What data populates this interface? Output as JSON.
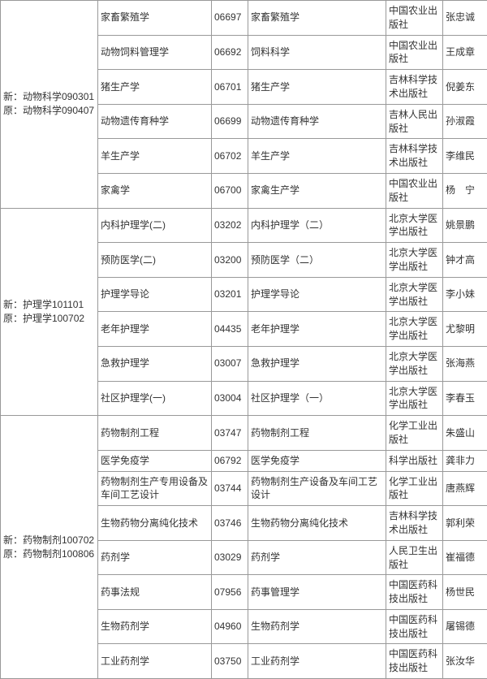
{
  "groups": [
    {
      "header_lines": [
        "新：动物科学090301",
        "原：动物科学090407"
      ],
      "rows": [
        {
          "course": "家畜繁殖学",
          "code": "06697",
          "book": "家畜繁殖学",
          "publisher": "中国农业出版社",
          "author": "张忠诚"
        },
        {
          "course": "动物饲料管理学",
          "code": "06692",
          "book": "饲料科学",
          "publisher": "中国农业出版社",
          "author": "王成章"
        },
        {
          "course": "猪生产学",
          "code": "06701",
          "book": "猪生产学",
          "publisher": "吉林科学技术出版社",
          "author": "倪姜东"
        },
        {
          "course": "动物遗传育种学",
          "code": "06699",
          "book": "动物遗传育种学",
          "publisher": "吉林人民出版社",
          "author": "孙淑霞"
        },
        {
          "course": "羊生产学",
          "code": "06702",
          "book": "羊生产学",
          "publisher": "吉林科学技术出版社",
          "author": "李维民"
        },
        {
          "course": "家禽学",
          "code": "06700",
          "book": "家禽生产学",
          "publisher": "中国农业出版社",
          "author": "杨　宁"
        }
      ]
    },
    {
      "header_lines": [
        "新：护理学101101",
        "原：护理学100702"
      ],
      "rows": [
        {
          "course": "内科护理学(二)",
          "code": "03202",
          "book": "内科护理学（二）",
          "publisher": "北京大学医学出版社",
          "author": "姚景鹏"
        },
        {
          "course": "预防医学(二)",
          "code": "03200",
          "book": "预防医学（二）",
          "publisher": "北京大学医学出版社",
          "author": "钟才高"
        },
        {
          "course": "护理学导论",
          "code": "03201",
          "book": "护理学导论",
          "publisher": "北京大学医学出版社",
          "author": "李小妹"
        },
        {
          "course": "老年护理学",
          "code": "04435",
          "book": "老年护理学",
          "publisher": "北京大学医学出版社",
          "author": "尤黎明"
        },
        {
          "course": "急救护理学",
          "code": "03007",
          "book": "急救护理学",
          "publisher": "北京大学医学出版社",
          "author": "张海燕"
        },
        {
          "course": "社区护理学(一)",
          "code": "03004",
          "book": "社区护理学（一）",
          "publisher": "北京大学医学出版社",
          "author": "李春玉"
        }
      ]
    },
    {
      "header_lines": [
        "新：药物制剂100702",
        "原：药物制剂100806"
      ],
      "rows": [
        {
          "course": "药物制剂工程",
          "code": "03747",
          "book": "药物制剂工程",
          "publisher": "化学工业出版社",
          "author": "朱盛山"
        },
        {
          "course": "医学免疫学",
          "code": "06792",
          "book": "医学免疫学",
          "publisher": "科学出版社",
          "author": "龚非力"
        },
        {
          "course": "药物制剂生产专用设备及车间工艺设计",
          "code": "03744",
          "book": "药物制剂生产设备及车间工艺设计",
          "publisher": "化学工业出版社",
          "author": "唐燕辉"
        },
        {
          "course": "生物药物分离纯化技术",
          "code": "03746",
          "book": "生物药物分离纯化技术",
          "publisher": "吉林科学技术出版社",
          "author": "郭利荣"
        },
        {
          "course": "药剂学",
          "code": "03029",
          "book": "药剂学",
          "publisher": "人民卫生出版社",
          "author": "崔福德"
        },
        {
          "course": "药事法规",
          "code": "07956",
          "book": "药事管理学",
          "publisher": "中国医药科技出版社",
          "author": "杨世民"
        },
        {
          "course": "生物药剂学",
          "code": "04960",
          "book": "生物药剂学",
          "publisher": "中国医药科技出版社",
          "author": "屠锡德"
        },
        {
          "course": "工业药剂学",
          "code": "03750",
          "book": "工业药剂学",
          "publisher": "中国医药科技出版社",
          "author": "张汝华"
        }
      ]
    }
  ]
}
